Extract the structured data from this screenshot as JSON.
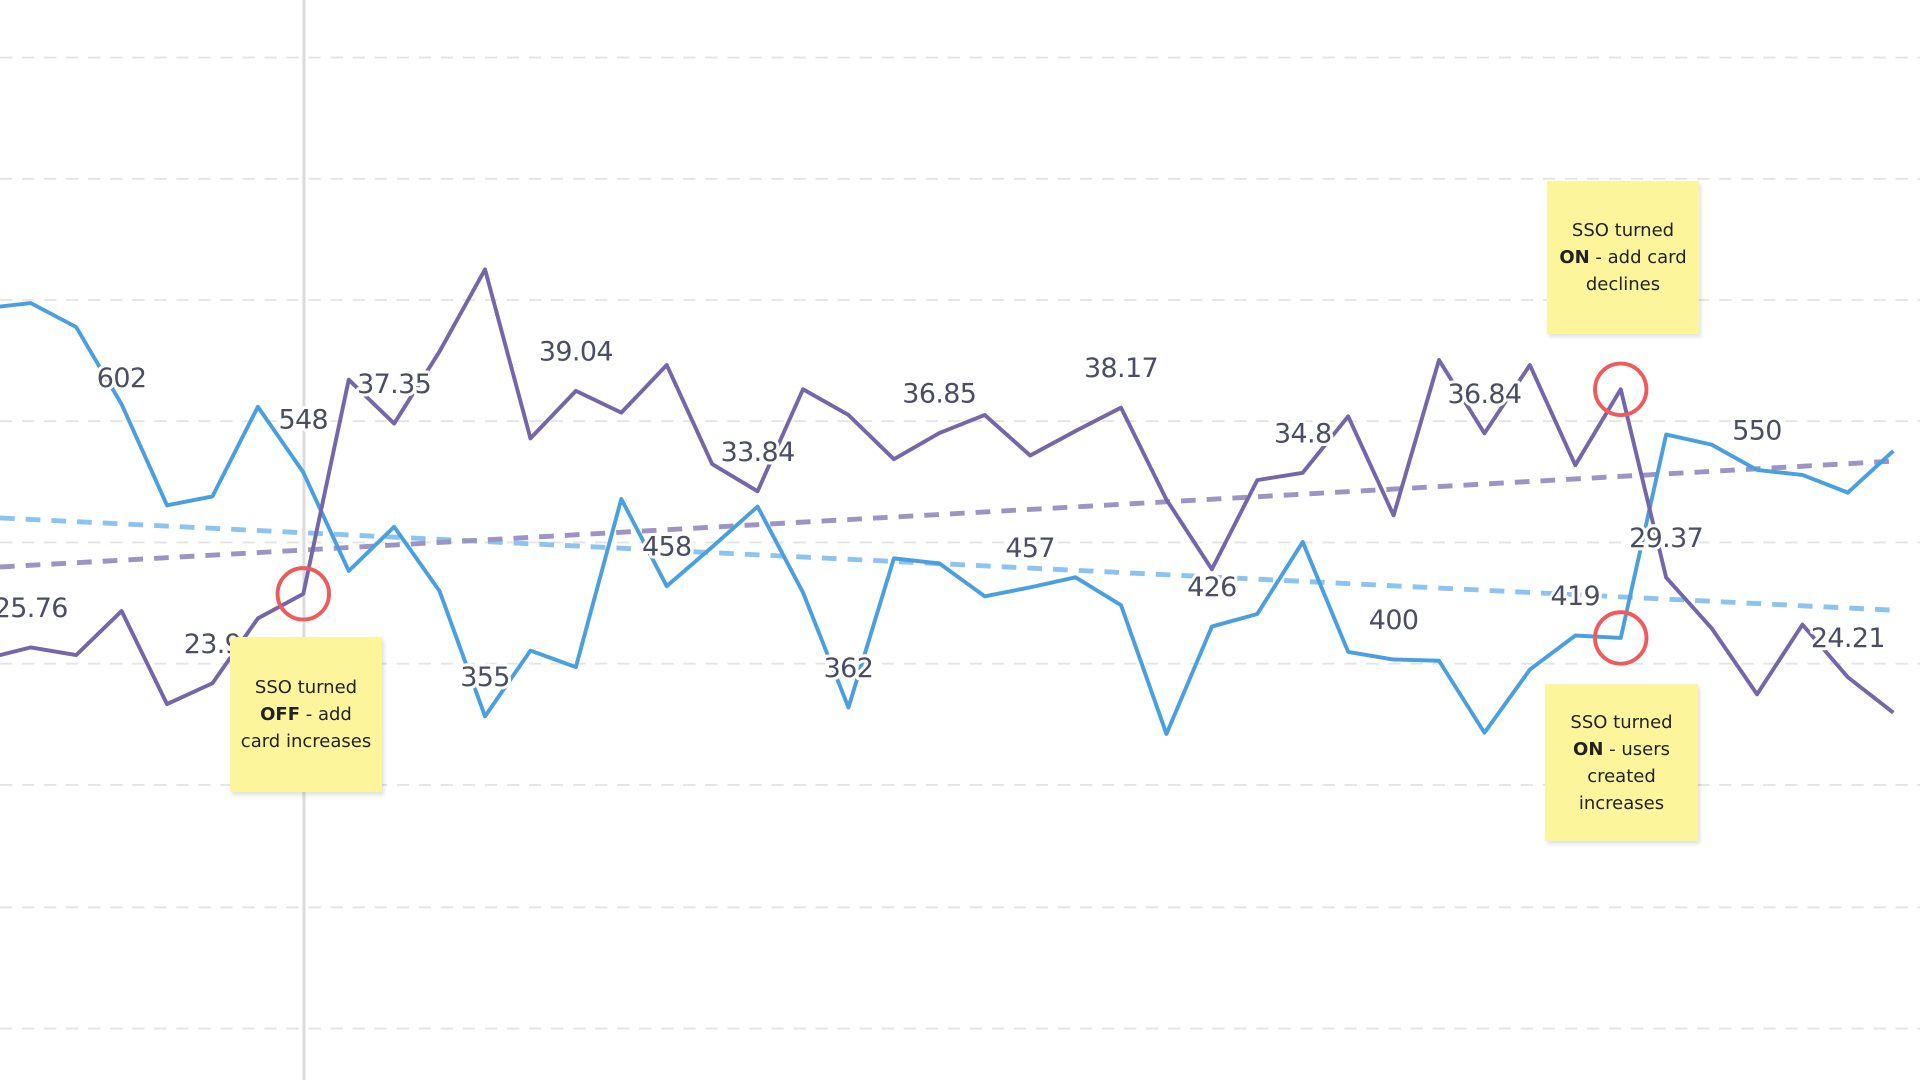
{
  "chart_data": {
    "type": "line",
    "title": "",
    "xlabel": "",
    "ylabel": "",
    "grid": true,
    "colors": {
      "blue_series": "#4a9fe0",
      "purple_series": "#7466a8",
      "highlight_circle": "#ef5b5b",
      "note": "#fdf59c",
      "label": "#4a4d63",
      "grid": "#e4e4e4"
    },
    "series": [
      {
        "key": "blue",
        "values": [
          678,
          682,
          663,
          602,
          522,
          529,
          600,
          548,
          470,
          505,
          454,
          355,
          407,
          394,
          527,
          458,
          489,
          521,
          453,
          362,
          480,
          476,
          450,
          457,
          465,
          443,
          341,
          426,
          436,
          493,
          406,
          400,
          399,
          342,
          392,
          419,
          417,
          578,
          570,
          550,
          546,
          532,
          565
        ],
        "trend": [
          512,
          439
        ],
        "labels": [
          {
            "index": 3,
            "text": "602"
          },
          {
            "index": 7,
            "text": "548"
          },
          {
            "index": 11,
            "text": "355"
          },
          {
            "index": 15,
            "text": "458"
          },
          {
            "index": 19,
            "text": "362"
          },
          {
            "index": 23,
            "text": "457"
          },
          {
            "index": 27,
            "text": "426"
          },
          {
            "index": 31,
            "text": "400"
          },
          {
            "index": 35,
            "text": "419"
          },
          {
            "index": 39,
            "text": "550"
          }
        ]
      },
      {
        "key": "purple",
        "values": [
          25.17,
          25.76,
          25.36,
          27.64,
          22.82,
          23.9,
          27.26,
          28.53,
          39.62,
          37.35,
          41.08,
          45.33,
          36.58,
          39.04,
          37.91,
          40.38,
          35.25,
          33.84,
          39.12,
          37.79,
          35.5,
          36.85,
          37.79,
          35.69,
          36.96,
          38.17,
          33.41,
          29.8,
          34.42,
          34.8,
          37.72,
          32.59,
          40.64,
          36.84,
          40.38,
          35.19,
          39.12,
          29.37,
          26.75,
          23.33,
          26.94,
          24.21,
          22.38
        ],
        "trend": [
          29.92,
          35.4
        ],
        "labels": [
          {
            "index": 1,
            "text": "25.76"
          },
          {
            "index": 5,
            "text": "23.9"
          },
          {
            "index": 9,
            "text": "37.35"
          },
          {
            "index": 13,
            "text": "39.04"
          },
          {
            "index": 17,
            "text": "33.84"
          },
          {
            "index": 21,
            "text": "36.85"
          },
          {
            "index": 25,
            "text": "38.17"
          },
          {
            "index": 29,
            "text": "34.8"
          },
          {
            "index": 33,
            "text": "36.84"
          },
          {
            "index": 37,
            "text": "29.37"
          },
          {
            "index": 41,
            "text": "24.21"
          }
        ]
      }
    ],
    "highlights": [
      {
        "series": "purple",
        "index": 7
      },
      {
        "series": "purple",
        "index": 36
      },
      {
        "series": "blue",
        "index": 36
      }
    ],
    "reference_line_index": 7
  },
  "notes": [
    {
      "line1": "SSO turned",
      "bold": "OFF",
      "rest": " - add card increases"
    },
    {
      "line1": "SSO turned",
      "bold": "ON",
      "rest": " - add card declines"
    },
    {
      "line1": "SSO turned",
      "bold": "ON",
      "rest": " - users created increases"
    }
  ]
}
